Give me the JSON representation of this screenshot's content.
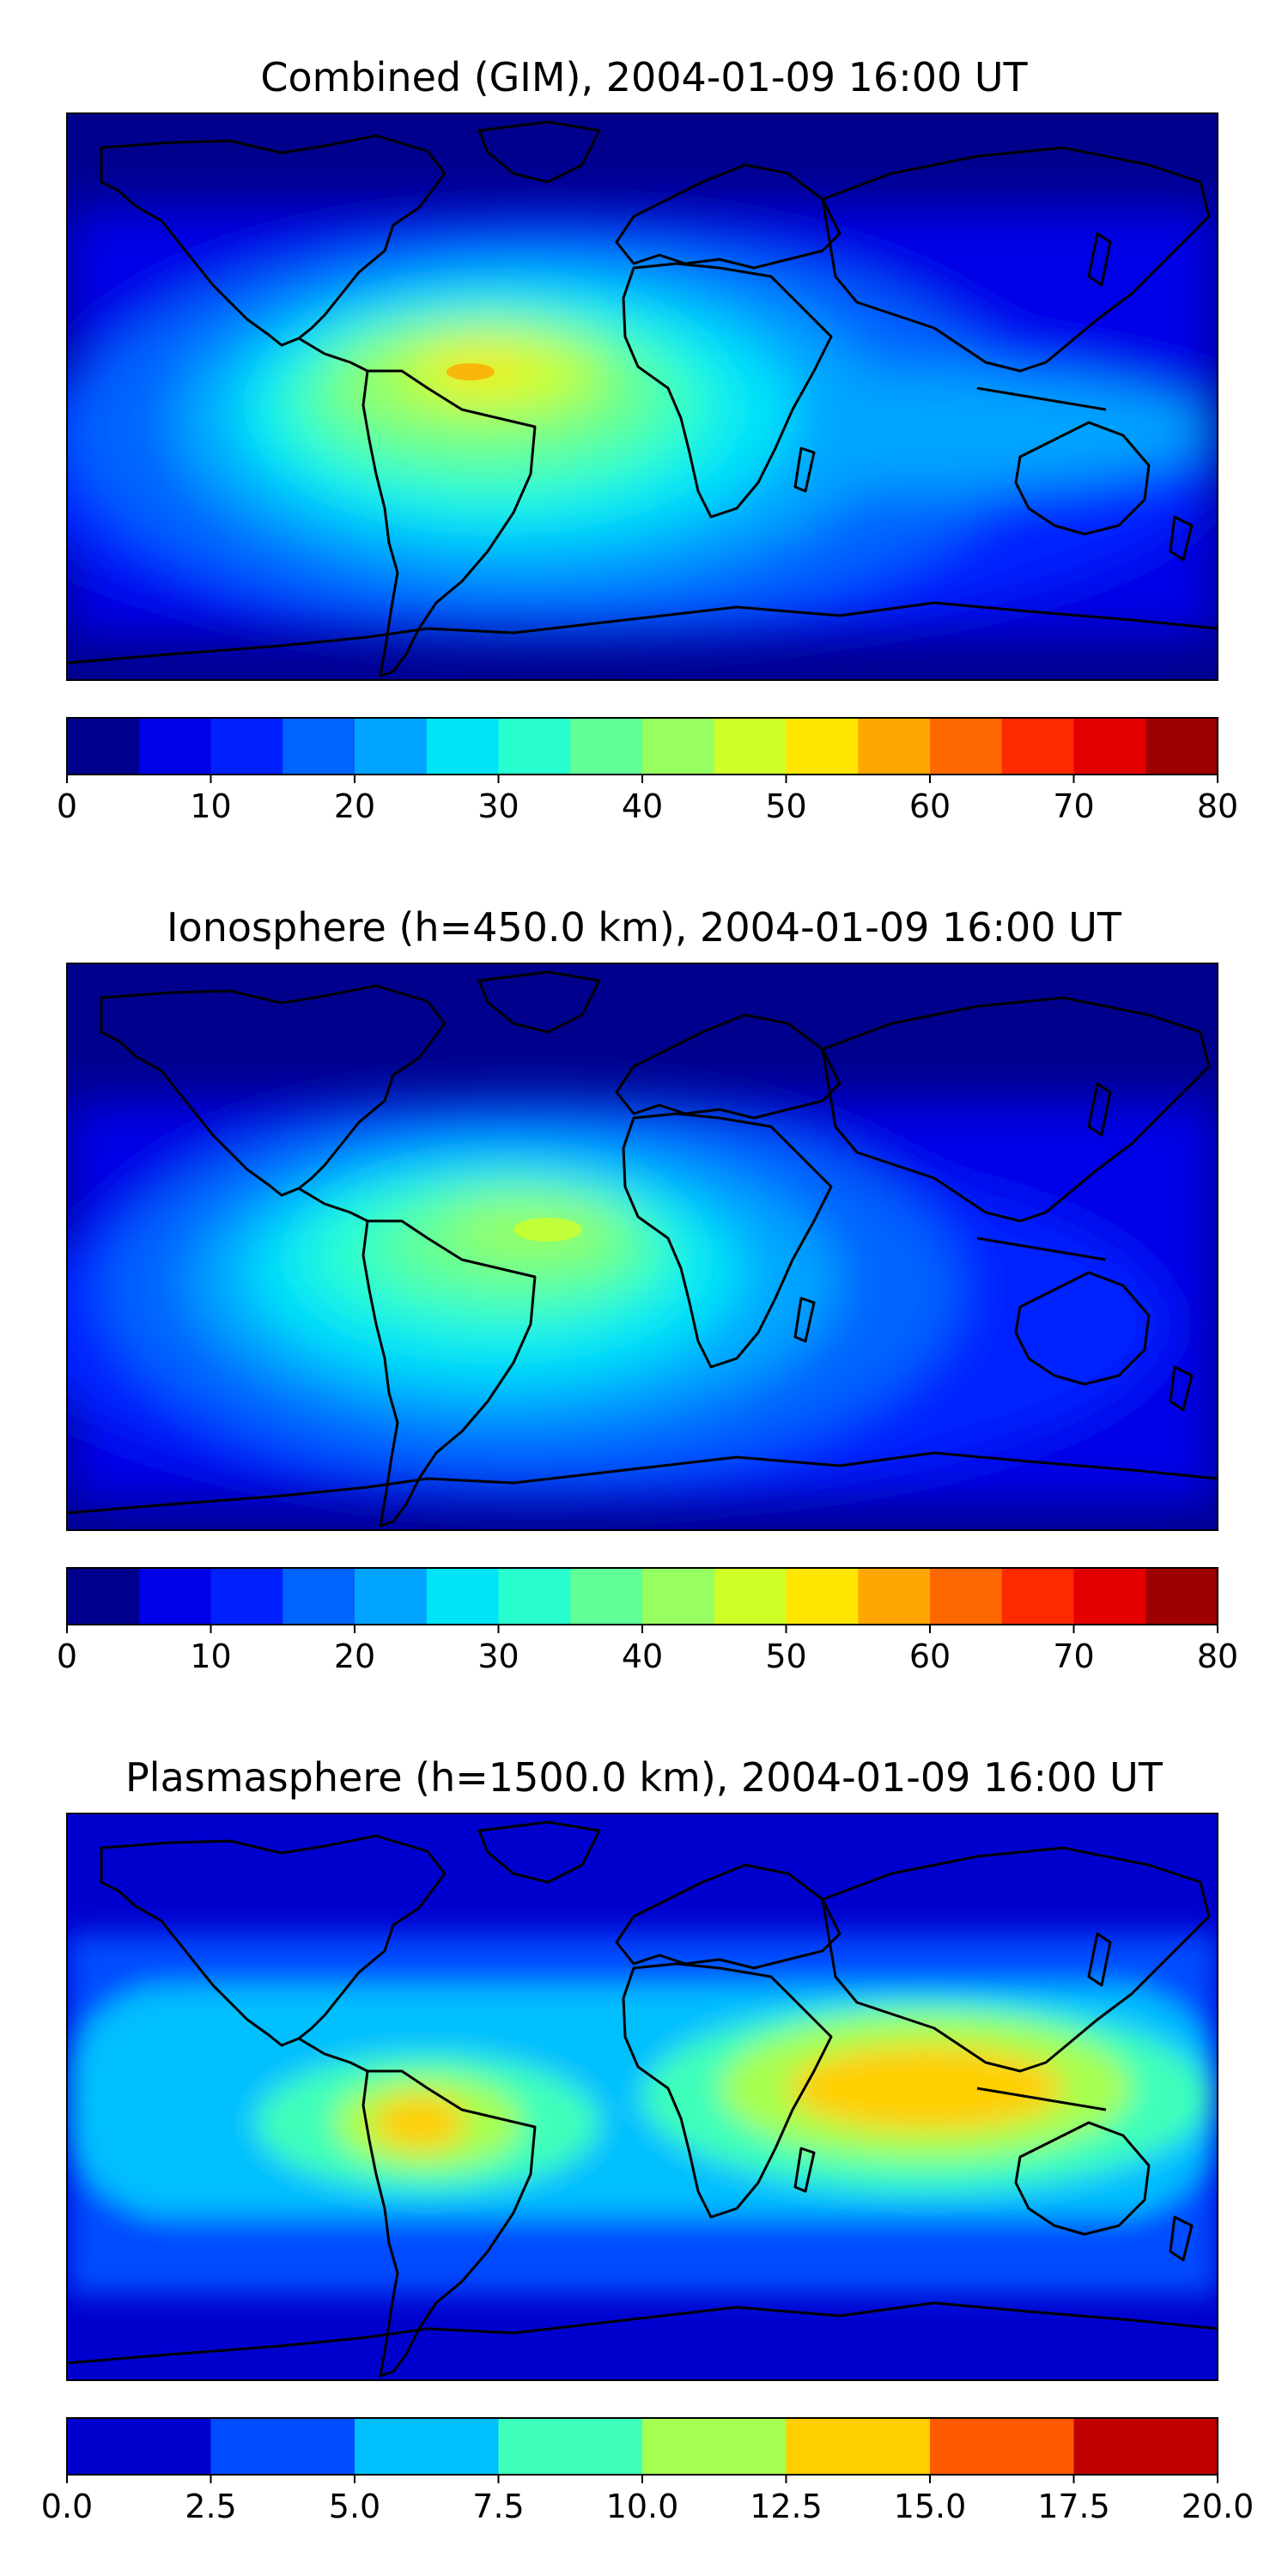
{
  "panels": [
    {
      "title": "Combined (GIM), 2004-01-09 16:00 UT",
      "colorbar": {
        "min": 0,
        "max": 80,
        "step": 5,
        "ticks": [
          "0",
          "10",
          "20",
          "30",
          "40",
          "50",
          "60",
          "70",
          "80"
        ],
        "colors": [
          "#00008d",
          "#0000e8",
          "#0020ff",
          "#0064ff",
          "#00a4ff",
          "#00e4f8",
          "#29ffce",
          "#60ff97",
          "#97ff60",
          "#ceff29",
          "#ffe600",
          "#ffa700",
          "#ff6800",
          "#ff2900",
          "#e40000",
          "#9f0000"
        ]
      }
    },
    {
      "title": "Ionosphere  (h=450.0 km), 2004-01-09 16:00 UT",
      "colorbar": {
        "min": 0,
        "max": 80,
        "step": 5,
        "ticks": [
          "0",
          "10",
          "20",
          "30",
          "40",
          "50",
          "60",
          "70",
          "80"
        ],
        "colors": [
          "#00008d",
          "#0000e8",
          "#0020ff",
          "#0064ff",
          "#00a4ff",
          "#00e4f8",
          "#29ffce",
          "#60ff97",
          "#97ff60",
          "#ceff29",
          "#ffe600",
          "#ffa700",
          "#ff6800",
          "#ff2900",
          "#e40000",
          "#9f0000"
        ]
      }
    },
    {
      "title": "Plasmasphere (h=1500.0 km), 2004-01-09 16:00 UT",
      "colorbar": {
        "min": 0,
        "max": 20,
        "step": 2.5,
        "ticks": [
          "0.0",
          "2.5",
          "5.0",
          "7.5",
          "10.0",
          "12.5",
          "15.0",
          "17.5",
          "20.0"
        ],
        "colors": [
          "#0000ce",
          "#004cff",
          "#00bfff",
          "#3dffba",
          "#a6ff50",
          "#ffcf00",
          "#ff5a00",
          "#c00000"
        ]
      }
    }
  ]
}
